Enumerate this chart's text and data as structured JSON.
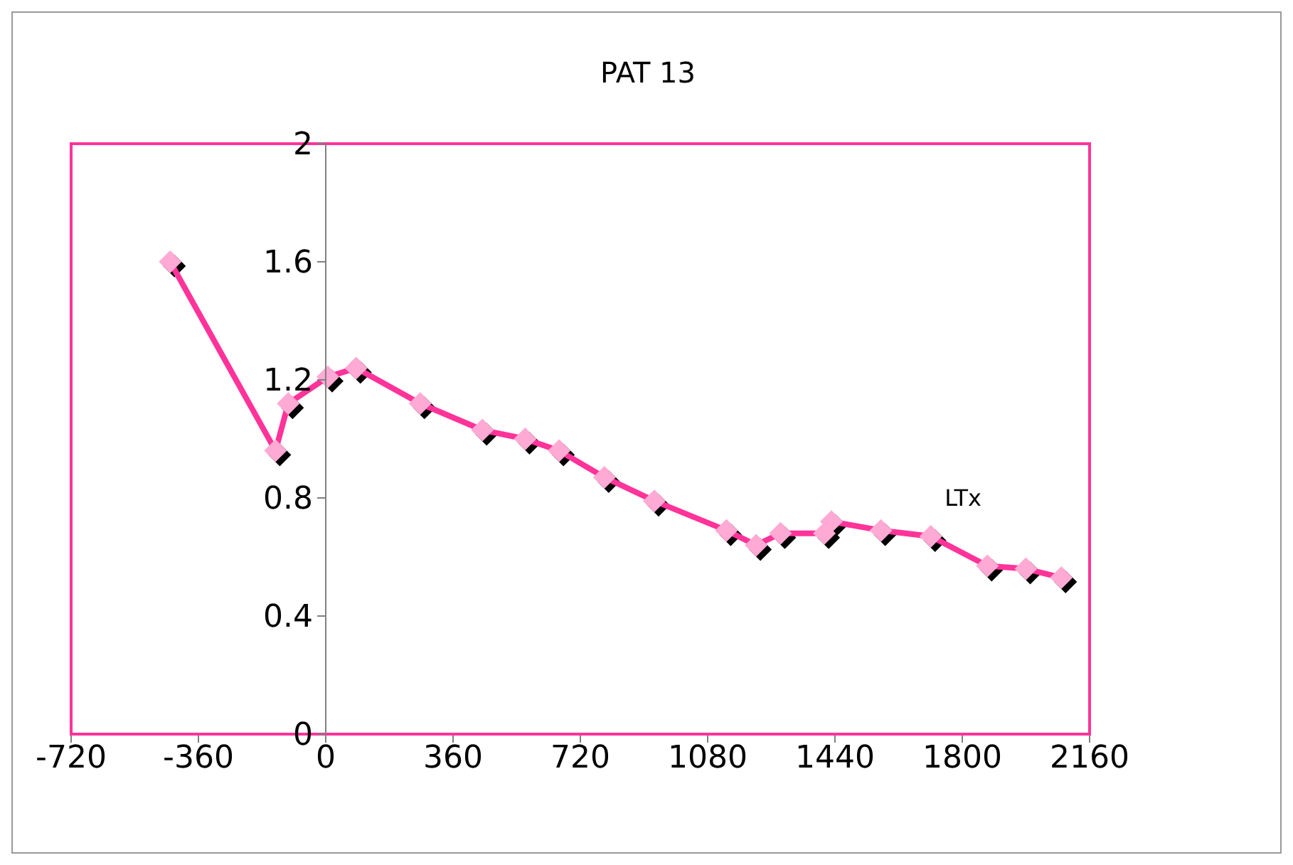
{
  "chart_data": {
    "type": "line",
    "title": "PAT 13",
    "x": [
      -440,
      -142,
      -106,
      6,
      86,
      267,
      443,
      564,
      660,
      788,
      929,
      1133,
      1217,
      1286,
      1410,
      1430,
      1570,
      1711,
      1871,
      1980,
      2080
    ],
    "series": [
      {
        "color": "#ff3399",
        "values": [
          1.6,
          0.96,
          1.12,
          1.21,
          1.24,
          1.12,
          1.03,
          1.0,
          0.96,
          0.87,
          0.79,
          0.69,
          0.64,
          0.68,
          0.68,
          0.72,
          0.69,
          0.67,
          0.57,
          0.56,
          0.53
        ]
      }
    ],
    "marker": "diamond",
    "line_style": "solid",
    "xlim": [
      -720,
      2160
    ],
    "xticks": [
      -720,
      -360,
      0,
      360,
      720,
      1080,
      1440,
      1800,
      2160
    ],
    "ylim": [
      0,
      2
    ],
    "yticks": [
      0,
      0.4,
      0.8,
      1.2,
      1.6,
      2
    ],
    "annotations": [
      "LTx"
    ]
  }
}
